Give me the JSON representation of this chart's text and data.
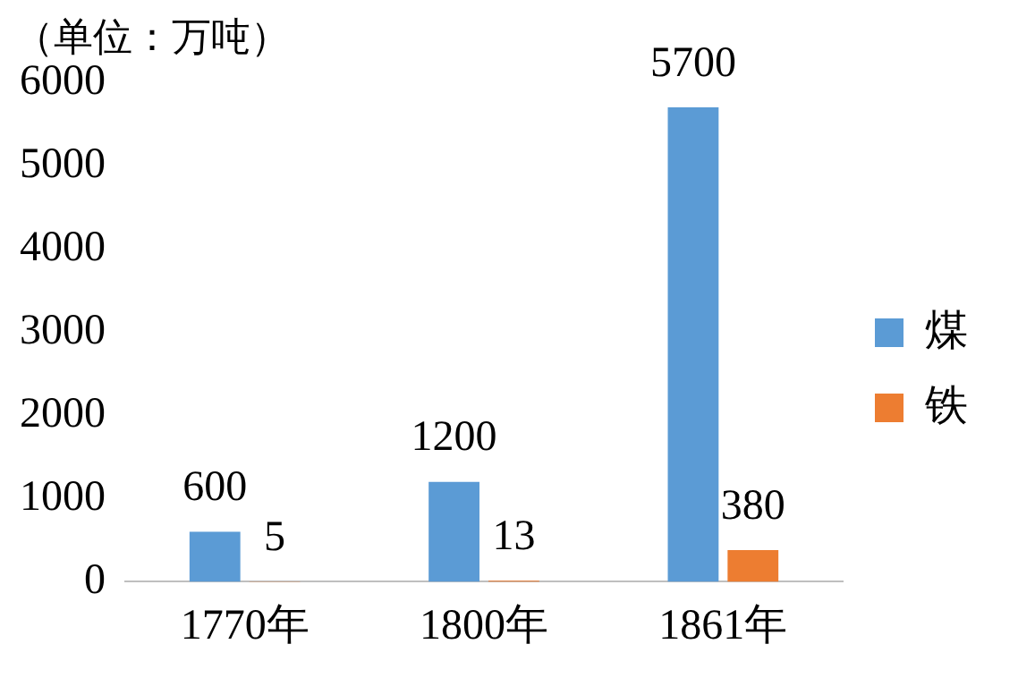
{
  "chart_data": {
    "type": "bar",
    "ylabel": "（单位：万吨）",
    "categories": [
      "1770年",
      "1800年",
      "1861年"
    ],
    "series": [
      {
        "name": "煤",
        "color": "#5b9bd5",
        "values": [
          600,
          1200,
          5700
        ]
      },
      {
        "name": "铁",
        "color": "#ed7d31",
        "values": [
          5,
          13,
          380
        ]
      }
    ],
    "ylim": [
      0,
      6000
    ],
    "yticks": [
      0,
      1000,
      2000,
      3000,
      4000,
      5000,
      6000
    ],
    "grid": false,
    "legend": "right",
    "data_labels": true
  }
}
